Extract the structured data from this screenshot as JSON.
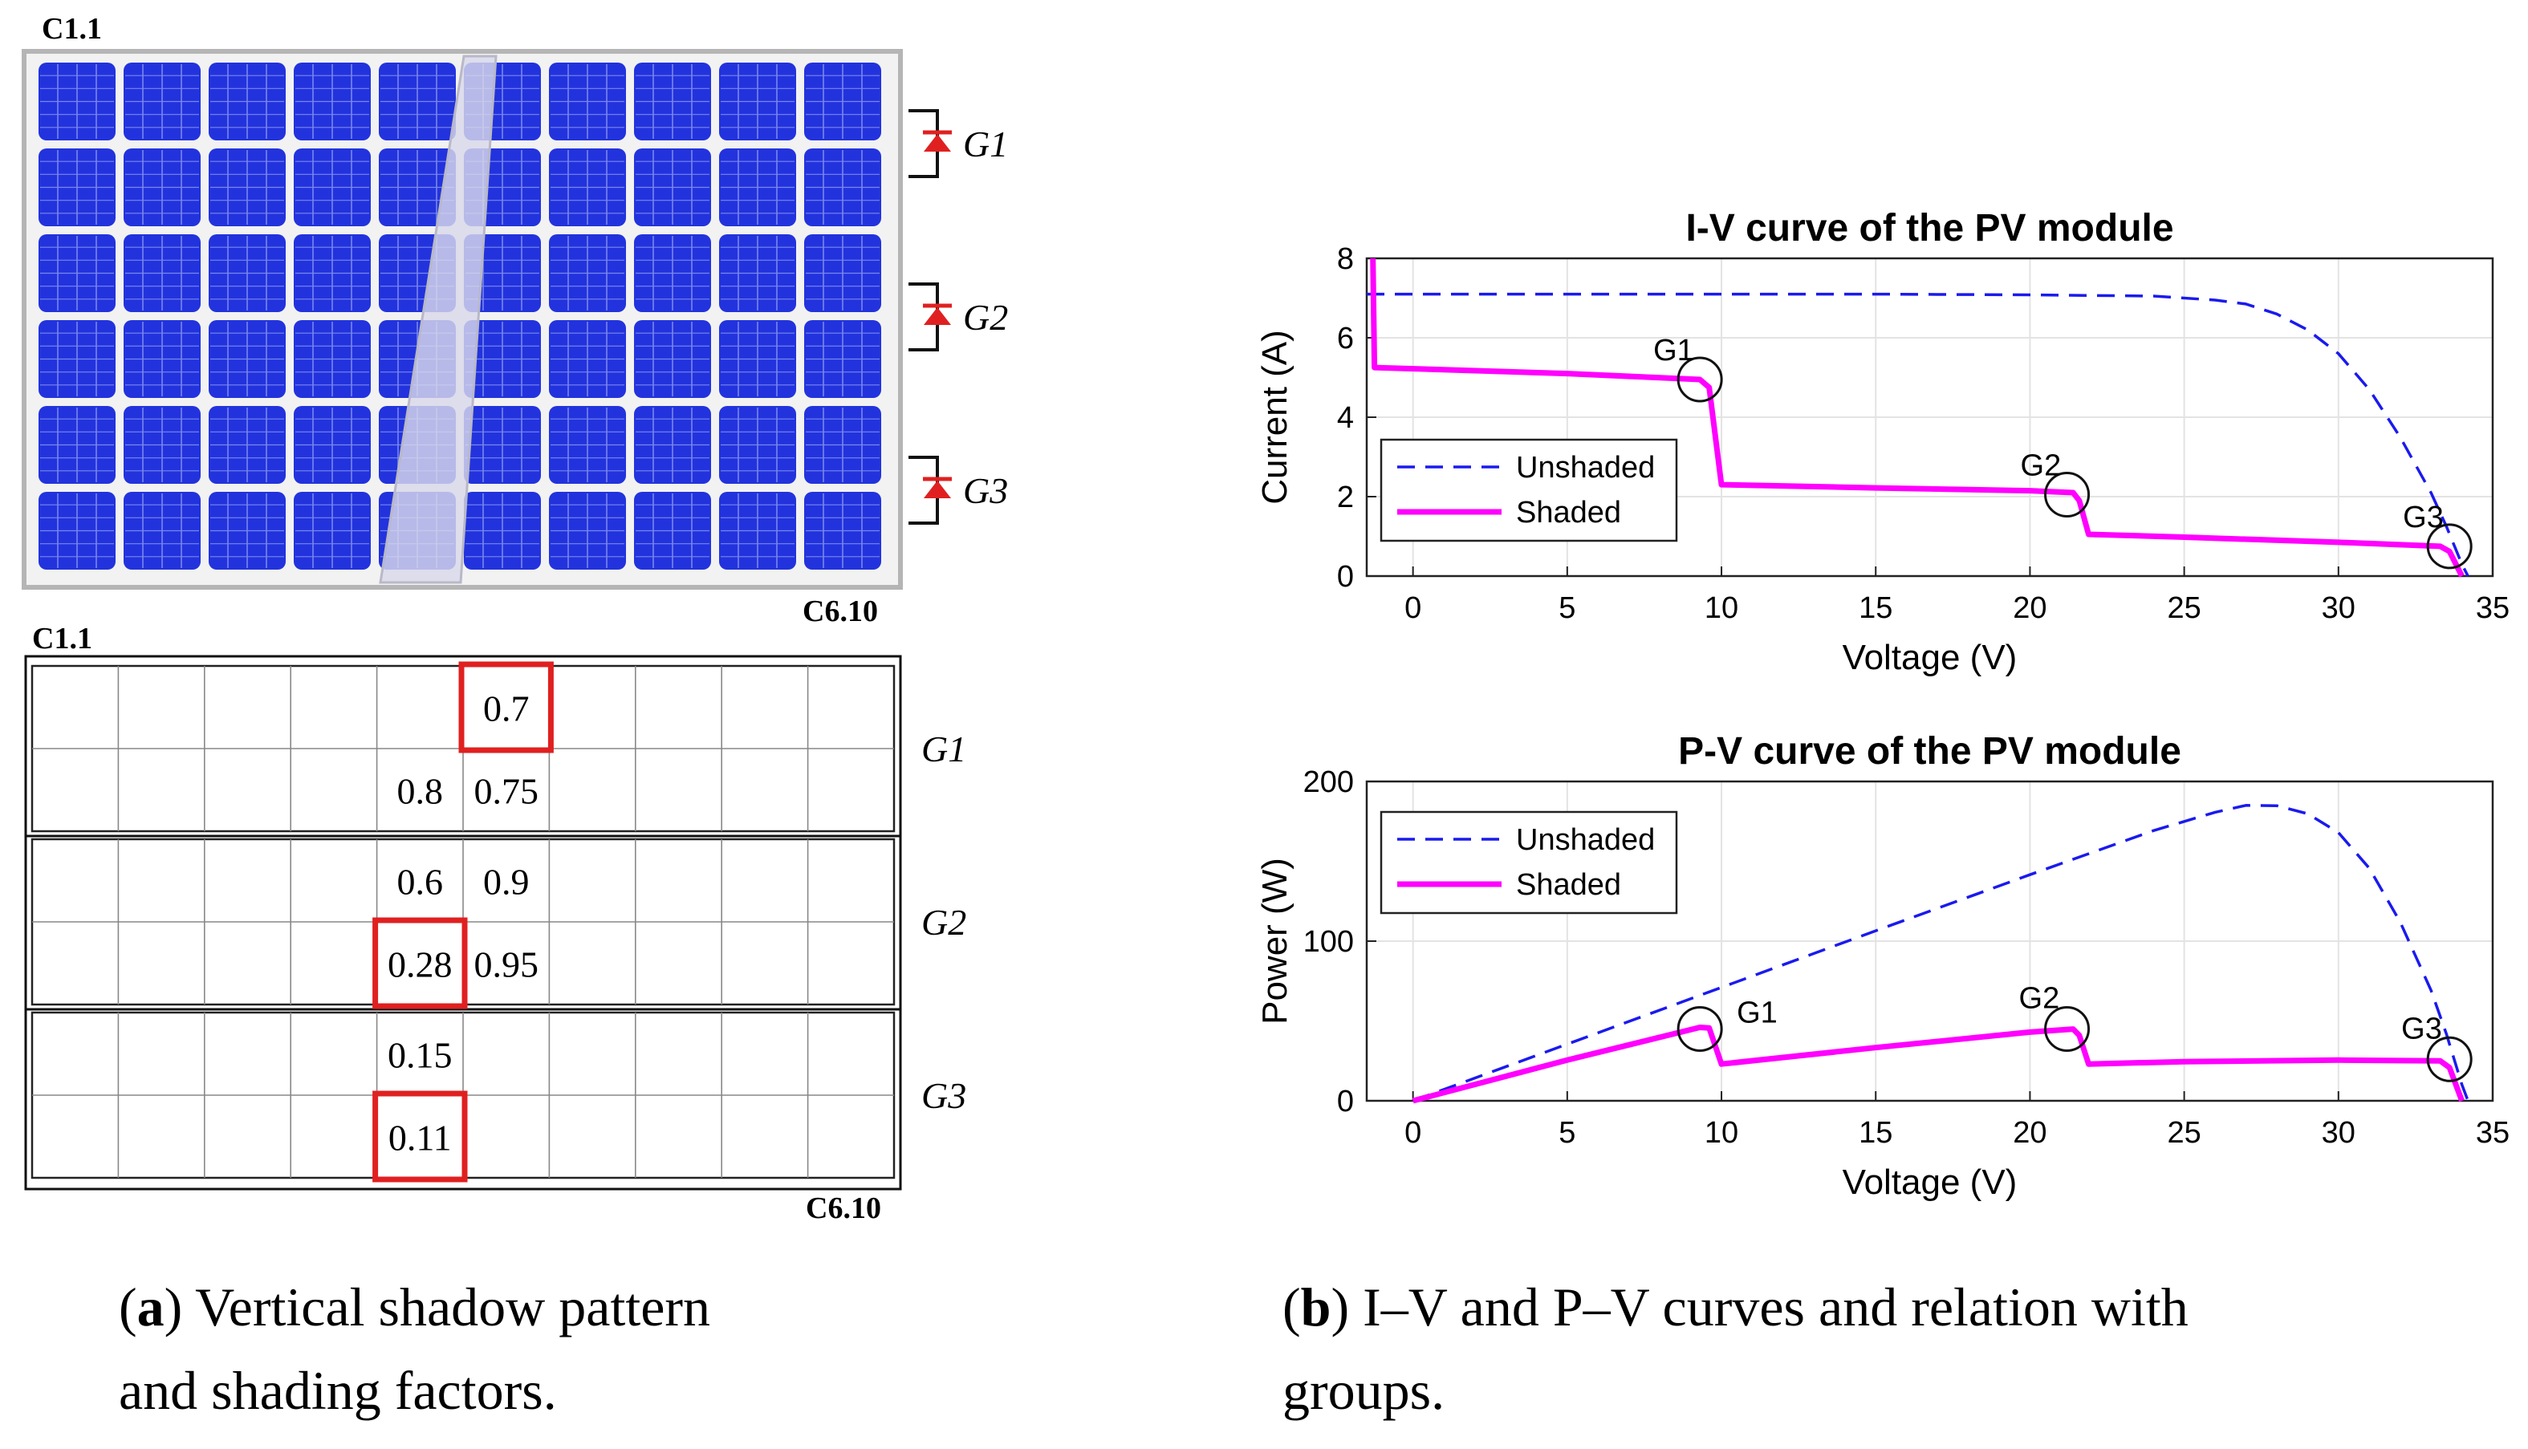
{
  "panel_a": {
    "module_corner_top": "C1.1",
    "module_corner_bottom": "C6.10",
    "table_corner_top": "C1.1",
    "table_corner_bottom": "C6.10",
    "groups": [
      "G1",
      "G2",
      "G3"
    ],
    "shading_factors": [
      {
        "row": 1,
        "col": 6,
        "value": "0.7",
        "highlight": true
      },
      {
        "row": 2,
        "col": 5,
        "value": "0.8",
        "highlight": false
      },
      {
        "row": 2,
        "col": 6,
        "value": "0.75",
        "highlight": false
      },
      {
        "row": 3,
        "col": 5,
        "value": "0.6",
        "highlight": false
      },
      {
        "row": 3,
        "col": 6,
        "value": "0.9",
        "highlight": false
      },
      {
        "row": 4,
        "col": 5,
        "value": "0.28",
        "highlight": true
      },
      {
        "row": 4,
        "col": 6,
        "value": "0.95",
        "highlight": false
      },
      {
        "row": 5,
        "col": 5,
        "value": "0.15",
        "highlight": false
      },
      {
        "row": 6,
        "col": 5,
        "value": "0.11",
        "highlight": true
      }
    ],
    "caption_label": "a",
    "caption_text": "Vertical shadow pattern and shading factors.",
    "colors": {
      "cell": "#2233dd",
      "cell_grid": "#7a86ee",
      "diode": "#e02020",
      "highlight": "#e02020"
    }
  },
  "panel_b": {
    "caption_label": "b",
    "caption_text": "I–V and P–V curves and relation with groups."
  },
  "chart_data": [
    {
      "type": "line",
      "title": "I-V curve of the PV module",
      "xlabel": "Voltage (V)",
      "ylabel": "Current (A)",
      "xlim": [
        -1.5,
        35
      ],
      "ylim": [
        0,
        8
      ],
      "xticks": [
        0,
        5,
        10,
        15,
        20,
        25,
        30,
        35
      ],
      "yticks": [
        0,
        2,
        4,
        6,
        8
      ],
      "grid": true,
      "legend": "bottom-left",
      "series": [
        {
          "name": "Unshaded",
          "style": "dashed",
          "color": "#1a1aee",
          "points": [
            [
              -1.5,
              7.1
            ],
            [
              0,
              7.1
            ],
            [
              5,
              7.1
            ],
            [
              10,
              7.1
            ],
            [
              15,
              7.1
            ],
            [
              20,
              7.08
            ],
            [
              24,
              7.05
            ],
            [
              26,
              6.95
            ],
            [
              27,
              6.85
            ],
            [
              28,
              6.6
            ],
            [
              29,
              6.2
            ],
            [
              30,
              5.6
            ],
            [
              31,
              4.7
            ],
            [
              32,
              3.5
            ],
            [
              33,
              2.1
            ],
            [
              33.5,
              1.25
            ],
            [
              34,
              0.3
            ],
            [
              34.2,
              0
            ]
          ]
        },
        {
          "name": "Shaded",
          "style": "solid",
          "color": "#ff00ff",
          "points": [
            [
              -1.3,
              8.0
            ],
            [
              -1.25,
              5.25
            ],
            [
              5,
              5.1
            ],
            [
              9.3,
              4.95
            ],
            [
              9.6,
              4.75
            ],
            [
              10.0,
              2.3
            ],
            [
              15,
              2.22
            ],
            [
              20,
              2.15
            ],
            [
              21.4,
              2.1
            ],
            [
              21.6,
              1.9
            ],
            [
              21.9,
              1.05
            ],
            [
              25,
              0.98
            ],
            [
              30,
              0.85
            ],
            [
              33.3,
              0.75
            ],
            [
              33.6,
              0.62
            ],
            [
              34.0,
              0
            ]
          ]
        }
      ],
      "annotations": [
        {
          "label": "G1",
          "x": 9.3,
          "y": 4.95
        },
        {
          "label": "G2",
          "x": 21.2,
          "y": 2.05
        },
        {
          "label": "G3",
          "x": 33.6,
          "y": 0.75
        }
      ]
    },
    {
      "type": "line",
      "title": "P-V curve of the PV module",
      "xlabel": "Voltage (V)",
      "ylabel": "Power (W)",
      "xlim": [
        -1.5,
        35
      ],
      "ylim": [
        0,
        200
      ],
      "xticks": [
        0,
        5,
        10,
        15,
        20,
        25,
        30,
        35
      ],
      "yticks": [
        0,
        100,
        200
      ],
      "grid": true,
      "legend": "top-left",
      "series": [
        {
          "name": "Unshaded",
          "style": "dashed",
          "color": "#1a1aee",
          "points": [
            [
              0,
              0
            ],
            [
              5,
              35.5
            ],
            [
              10,
              71
            ],
            [
              15,
              106.5
            ],
            [
              20,
              141.6
            ],
            [
              24,
              169.2
            ],
            [
              26,
              180.7
            ],
            [
              27,
              185
            ],
            [
              28,
              184.8
            ],
            [
              29,
              179.8
            ],
            [
              30,
              168
            ],
            [
              31,
              145.7
            ],
            [
              32,
              112
            ],
            [
              33,
              69.3
            ],
            [
              33.5,
              41.9
            ],
            [
              34,
              10.2
            ],
            [
              34.2,
              0
            ]
          ]
        },
        {
          "name": "Shaded",
          "style": "solid",
          "color": "#ff00ff",
          "points": [
            [
              0,
              0
            ],
            [
              5,
              25.5
            ],
            [
              9.3,
              46
            ],
            [
              9.6,
              45.6
            ],
            [
              10.0,
              23
            ],
            [
              15,
              33.3
            ],
            [
              20,
              43
            ],
            [
              21.4,
              44.9
            ],
            [
              21.6,
              41
            ],
            [
              21.9,
              23
            ],
            [
              25,
              24.5
            ],
            [
              30,
              25.5
            ],
            [
              33.3,
              25
            ],
            [
              33.6,
              20.8
            ],
            [
              34.0,
              0
            ]
          ]
        }
      ],
      "annotations": [
        {
          "label": "G1",
          "x": 9.3,
          "y": 45
        },
        {
          "label": "G2",
          "x": 21.2,
          "y": 45
        },
        {
          "label": "G3",
          "x": 33.6,
          "y": 26
        }
      ]
    }
  ]
}
